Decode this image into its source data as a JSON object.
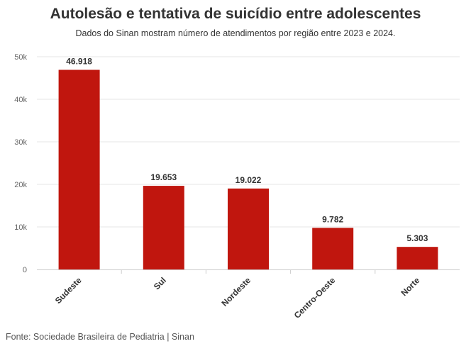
{
  "chart_data": {
    "type": "bar",
    "title": "Autolesão e tentativa de suicídio entre adolescentes",
    "subtitle": "Dados do Sinan mostram número de atendimentos por região entre 2023 e 2024.",
    "source": "Fonte: Sociedade Brasileira de Pediatria | Sinan",
    "categories": [
      "Sudeste",
      "Sul",
      "Nordeste",
      "Centro-Oeste",
      "Norte"
    ],
    "values": [
      46918,
      19653,
      19022,
      9782,
      5303
    ],
    "data_labels": [
      "46.918",
      "19.653",
      "19.022",
      "9.782",
      "5.303"
    ],
    "ylim": [
      0,
      50000
    ],
    "yticks": [
      0,
      10000,
      20000,
      30000,
      40000,
      50000
    ],
    "ytick_labels": [
      "0",
      "10k",
      "20k",
      "30k",
      "40k",
      "50k"
    ],
    "xlabel": "",
    "ylabel": "",
    "grid": true,
    "bar_color": "#c0160e",
    "grid_color": "#e6e6e6"
  }
}
